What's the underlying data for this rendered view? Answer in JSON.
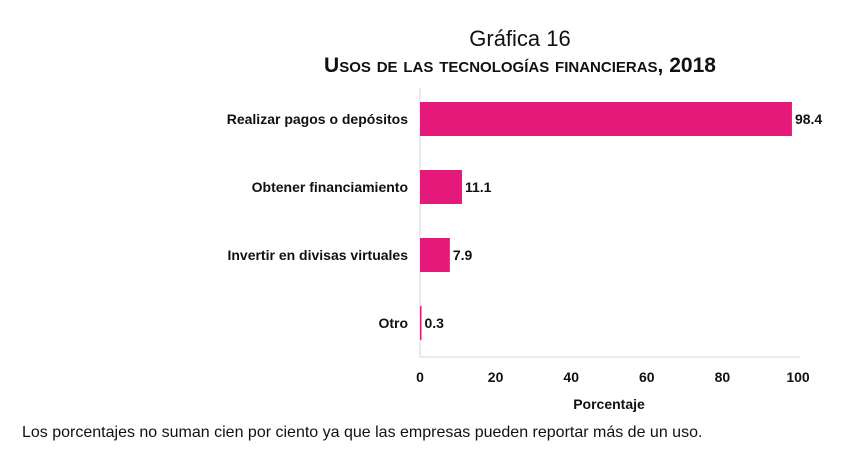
{
  "chart_data": {
    "type": "bar",
    "orientation": "horizontal",
    "title": "Gráfica 16",
    "subtitle": "Usos de las tecnologías financieras, 2018",
    "categories": [
      "Realizar pagos o depósitos",
      "Obtener financiamiento",
      "Invertir en divisas virtuales",
      "Otro"
    ],
    "values": [
      98.4,
      11.1,
      7.9,
      0.3
    ],
    "value_labels": [
      "98.4",
      "11.1",
      "7.9",
      "0.3"
    ],
    "xlabel": "Porcentaje",
    "ylabel": "",
    "xlim": [
      0,
      100
    ],
    "xticks": [
      "0",
      "20",
      "40",
      "60",
      "80",
      "100"
    ],
    "grid": false,
    "color": "#e5197a"
  },
  "footnote": "Los porcentajes no suman cien por ciento ya que las empresas pueden reportar más de un uso."
}
